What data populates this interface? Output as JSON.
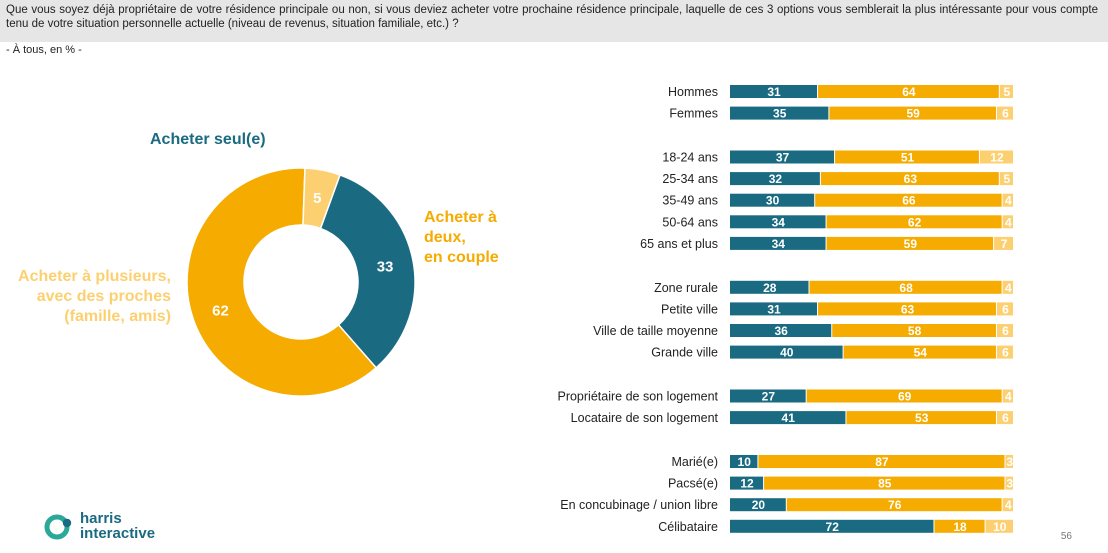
{
  "question": "Que vous soyez déjà propriétaire de votre résidence principale ou non, si vous deviez acheter votre prochaine résidence principale, laquelle de ces 3 options vous semblerait la plus intéressante pour vous compte tenu de votre situation personnelle actuelle (niveau de revenus, situation familiale, etc.) ?",
  "subtitle": "- À tous, en % -",
  "page_number": "56",
  "logo": {
    "line1": "harris",
    "line2": "interactive"
  },
  "colors": {
    "seul": "#1a6b82",
    "deux": "#f5ab00",
    "plusieurs": "#fcd070"
  },
  "chart_data": [
    {
      "type": "pie",
      "donut": true,
      "slices": [
        {
          "label": "Acheter seul(e)",
          "value": 33,
          "color": "#1a6b82"
        },
        {
          "label": "Acheter à deux, en couple",
          "value": 62,
          "color": "#f5ab00"
        },
        {
          "label": "Acheter à plusieurs, avec des proches (famille, amis)",
          "value": 5,
          "color": "#fcd070"
        }
      ],
      "labels_display": {
        "seul": [
          "Acheter seul(e)"
        ],
        "deux": [
          "Acheter à deux,",
          "en couple"
        ],
        "plusieurs": [
          "Acheter à plusieurs,",
          "avec des proches",
          "(famille, amis)"
        ]
      }
    },
    {
      "type": "bar",
      "stacked": true,
      "orientation": "horizontal",
      "xlim": [
        0,
        100
      ],
      "groups": [
        {
          "rows": [
            {
              "label": "Hommes",
              "values": [
                31,
                64,
                5
              ]
            },
            {
              "label": "Femmes",
              "values": [
                35,
                59,
                6
              ]
            }
          ]
        },
        {
          "rows": [
            {
              "label": "18-24 ans",
              "values": [
                37,
                51,
                12
              ]
            },
            {
              "label": "25-34 ans",
              "values": [
                32,
                63,
                5
              ]
            },
            {
              "label": "35-49 ans",
              "values": [
                30,
                66,
                4
              ]
            },
            {
              "label": "50-64 ans",
              "values": [
                34,
                62,
                4
              ]
            },
            {
              "label": "65 ans et plus",
              "values": [
                34,
                59,
                7
              ]
            }
          ]
        },
        {
          "rows": [
            {
              "label": "Zone rurale",
              "values": [
                28,
                68,
                4
              ]
            },
            {
              "label": "Petite ville",
              "values": [
                31,
                63,
                6
              ]
            },
            {
              "label": "Ville de taille moyenne",
              "values": [
                36,
                58,
                6
              ]
            },
            {
              "label": "Grande ville",
              "values": [
                40,
                54,
                6
              ]
            }
          ]
        },
        {
          "rows": [
            {
              "label": "Propriétaire de son logement",
              "values": [
                27,
                69,
                4
              ]
            },
            {
              "label": "Locataire de son logement",
              "values": [
                41,
                53,
                6
              ]
            }
          ]
        },
        {
          "rows": [
            {
              "label": "Marié(e)",
              "values": [
                10,
                87,
                3
              ]
            },
            {
              "label": "Pacsé(e)",
              "values": [
                12,
                85,
                3
              ]
            },
            {
              "label": "En concubinage / union libre",
              "values": [
                20,
                76,
                4
              ]
            },
            {
              "label": "Célibataire",
              "values": [
                72,
                18,
                10
              ]
            }
          ]
        }
      ],
      "series_colors": [
        "#1a6b82",
        "#f5ab00",
        "#fcd070"
      ]
    }
  ]
}
